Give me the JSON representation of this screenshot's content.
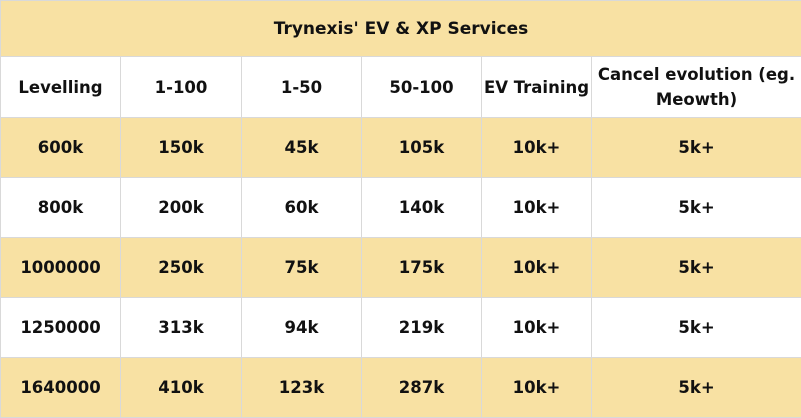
{
  "table": {
    "title": "Trynexis' EV & XP Services",
    "headers": [
      "Levelling",
      "1-100",
      "1-50",
      "50-100",
      "EV Training",
      "Cancel evolution (eg. Meowth)"
    ],
    "rows": [
      [
        "600k",
        "150k",
        "45k",
        "105k",
        "10k+",
        "5k+"
      ],
      [
        "800k",
        "200k",
        "60k",
        "140k",
        "10k+",
        "5k+"
      ],
      [
        "1000000",
        "250k",
        "75k",
        "175k",
        "10k+",
        "5k+"
      ],
      [
        "1250000",
        "313k",
        "94k",
        "219k",
        "10k+",
        "5k+"
      ],
      [
        "1640000",
        "410k",
        "123k",
        "287k",
        "10k+",
        "5k+"
      ]
    ]
  },
  "colors": {
    "tint": "#f8e1a3",
    "plain": "#ffffff",
    "grid": "#d9d9d9",
    "text": "#111111"
  }
}
